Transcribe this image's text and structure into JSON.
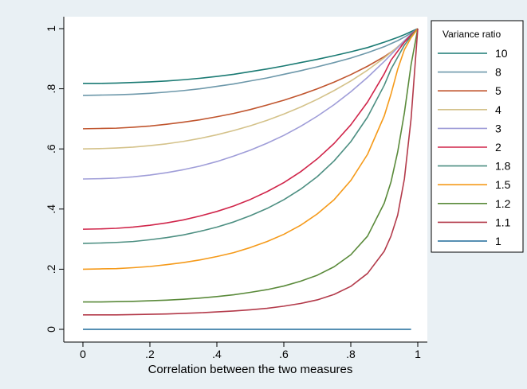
{
  "chart_data": {
    "type": "line",
    "xlabel": "Correlation between the two measures",
    "ylabel": "",
    "xlim": [
      0,
      1
    ],
    "ylim": [
      0,
      1
    ],
    "x_ticks": [
      {
        "value": 0,
        "label": "0"
      },
      {
        "value": 0.2,
        "label": ".2"
      },
      {
        "value": 0.4,
        "label": ".4"
      },
      {
        "value": 0.6,
        "label": ".6"
      },
      {
        "value": 0.8,
        "label": ".8"
      },
      {
        "value": 1,
        "label": "1"
      }
    ],
    "y_ticks": [
      {
        "value": 0,
        "label": "0"
      },
      {
        "value": 0.2,
        "label": ".2"
      },
      {
        "value": 0.4,
        "label": ".4"
      },
      {
        "value": 0.6,
        "label": ".6"
      },
      {
        "value": 0.8,
        "label": ".8"
      },
      {
        "value": 1,
        "label": "1"
      }
    ],
    "grid": false,
    "legend": {
      "title": "Variance ratio",
      "position": "right"
    },
    "x": [
      0,
      0.05,
      0.1,
      0.15,
      0.2,
      0.25,
      0.3,
      0.35,
      0.4,
      0.45,
      0.5,
      0.55,
      0.6,
      0.65,
      0.7,
      0.75,
      0.8,
      0.85,
      0.9,
      0.92,
      0.94,
      0.96,
      0.98,
      1
    ],
    "series": [
      {
        "name": "10",
        "color": "#1a7a73",
        "values": [
          0.818,
          0.818,
          0.819,
          0.821,
          0.823,
          0.826,
          0.83,
          0.835,
          0.841,
          0.848,
          0.857,
          0.866,
          0.876,
          0.887,
          0.898,
          0.91,
          0.923,
          0.937,
          0.955,
          0.963,
          0.971,
          0.98,
          0.99,
          1.0
        ]
      },
      {
        "name": "8",
        "color": "#6d98aa",
        "values": [
          0.778,
          0.779,
          0.78,
          0.782,
          0.785,
          0.789,
          0.794,
          0.8,
          0.808,
          0.816,
          0.826,
          0.836,
          0.848,
          0.86,
          0.873,
          0.887,
          0.902,
          0.92,
          0.94,
          0.95,
          0.96,
          0.972,
          0.985,
          1.0
        ]
      },
      {
        "name": "5",
        "color": "#c0552e",
        "values": [
          0.667,
          0.668,
          0.669,
          0.672,
          0.676,
          0.682,
          0.689,
          0.697,
          0.707,
          0.718,
          0.731,
          0.746,
          0.762,
          0.78,
          0.8,
          0.822,
          0.847,
          0.875,
          0.907,
          0.922,
          0.938,
          0.956,
          0.976,
          1.0
        ]
      },
      {
        "name": "4",
        "color": "#d4c28a",
        "values": [
          0.6,
          0.601,
          0.603,
          0.606,
          0.611,
          0.617,
          0.625,
          0.635,
          0.647,
          0.661,
          0.677,
          0.695,
          0.716,
          0.739,
          0.765,
          0.794,
          0.826,
          0.862,
          0.903,
          0.921,
          0.94,
          0.96,
          0.98,
          1.0
        ]
      },
      {
        "name": "3",
        "color": "#9f9dd8",
        "values": [
          0.5,
          0.501,
          0.503,
          0.507,
          0.513,
          0.521,
          0.531,
          0.543,
          0.558,
          0.576,
          0.596,
          0.619,
          0.645,
          0.675,
          0.709,
          0.747,
          0.79,
          0.838,
          0.891,
          0.914,
          0.937,
          0.96,
          0.981,
          1.0
        ]
      },
      {
        "name": "2",
        "color": "#d0254a",
        "values": [
          0.333,
          0.334,
          0.336,
          0.34,
          0.346,
          0.354,
          0.364,
          0.377,
          0.392,
          0.41,
          0.432,
          0.458,
          0.488,
          0.524,
          0.567,
          0.618,
          0.68,
          0.756,
          0.85,
          0.895,
          0.925,
          0.955,
          0.98,
          1.0
        ]
      },
      {
        "name": "1.8",
        "color": "#4d8f82",
        "values": [
          0.286,
          0.287,
          0.289,
          0.292,
          0.298,
          0.305,
          0.314,
          0.326,
          0.34,
          0.357,
          0.378,
          0.402,
          0.431,
          0.466,
          0.508,
          0.56,
          0.624,
          0.706,
          0.812,
          0.865,
          0.905,
          0.945,
          0.975,
          1.0
        ]
      },
      {
        "name": "1.5",
        "color": "#f59a1a",
        "values": [
          0.2,
          0.201,
          0.202,
          0.205,
          0.209,
          0.215,
          0.222,
          0.231,
          0.242,
          0.255,
          0.272,
          0.292,
          0.316,
          0.346,
          0.384,
          0.431,
          0.495,
          0.582,
          0.71,
          0.782,
          0.865,
          0.93,
          0.97,
          1.0
        ]
      },
      {
        "name": "1.2",
        "color": "#5a8a3a",
        "values": [
          0.091,
          0.091,
          0.092,
          0.093,
          0.095,
          0.097,
          0.1,
          0.104,
          0.109,
          0.115,
          0.123,
          0.132,
          0.144,
          0.16,
          0.18,
          0.208,
          0.248,
          0.31,
          0.42,
          0.49,
          0.59,
          0.72,
          0.88,
          1.0
        ]
      },
      {
        "name": "1.1",
        "color": "#b33a4a",
        "values": [
          0.048,
          0.048,
          0.048,
          0.049,
          0.05,
          0.051,
          0.053,
          0.055,
          0.058,
          0.061,
          0.065,
          0.07,
          0.077,
          0.086,
          0.098,
          0.116,
          0.143,
          0.186,
          0.26,
          0.31,
          0.38,
          0.5,
          0.7,
          1.0
        ]
      },
      {
        "name": "1",
        "color": "#1f6a9a",
        "values": [
          0,
          0,
          0,
          0,
          0,
          0,
          0,
          0,
          0,
          0,
          0,
          0,
          0,
          0,
          0,
          0,
          0,
          0,
          0,
          0,
          0,
          0,
          0,
          null
        ]
      }
    ]
  }
}
